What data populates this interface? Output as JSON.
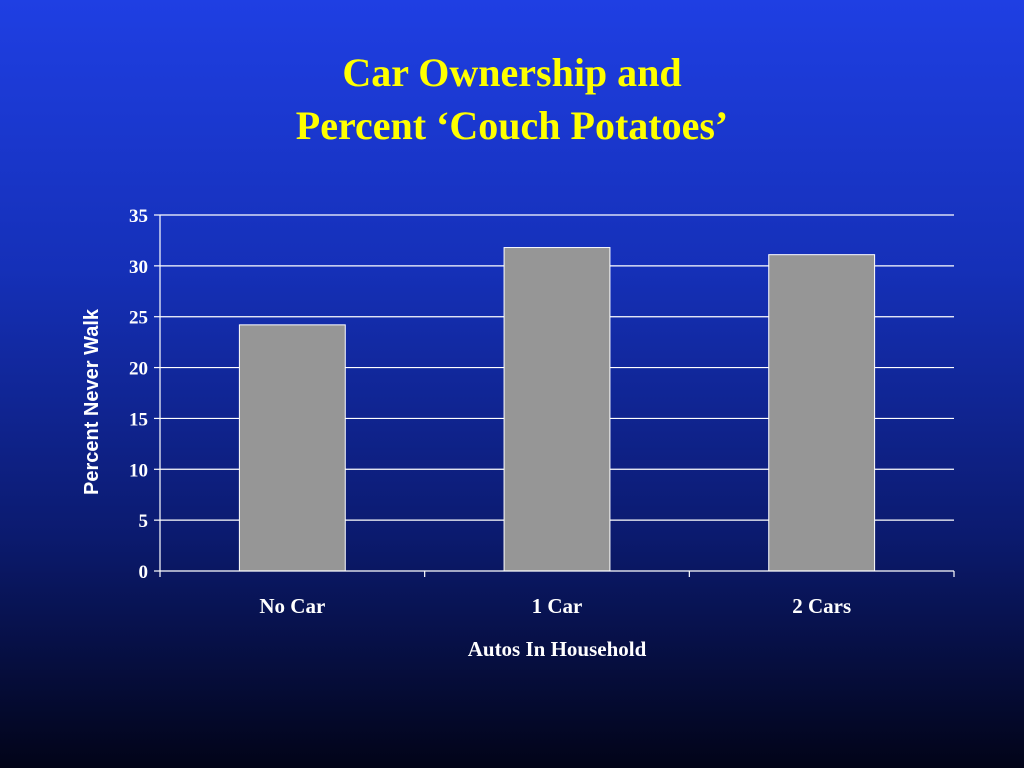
{
  "slide": {
    "title_line1": "Car Ownership and",
    "title_line2": "Percent ‘Couch Potatoes’"
  },
  "colors": {
    "title": "#ffff00",
    "bar_fill": "#969696",
    "bar_stroke": "#ffffff",
    "gridline": "#ffffff",
    "text": "#ffffff"
  },
  "chart_data": {
    "type": "bar",
    "categories": [
      "No Car",
      "1 Car",
      "2 Cars"
    ],
    "values": [
      24.2,
      31.8,
      31.1
    ],
    "title": "Car Ownership and Percent ‘Couch Potatoes’",
    "xlabel": "Autos In Household",
    "ylabel": "Percent Never Walk",
    "ylim": [
      0,
      35
    ],
    "yticks": [
      0,
      5,
      10,
      15,
      20,
      25,
      30,
      35
    ],
    "grid": true,
    "legend": "none"
  }
}
